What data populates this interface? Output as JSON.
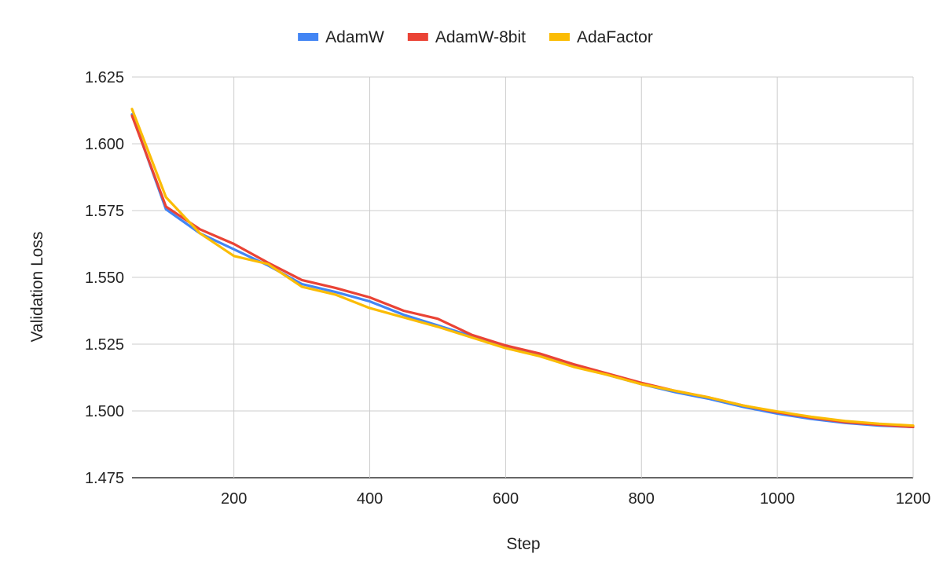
{
  "chart_data": {
    "type": "line",
    "title": "",
    "xlabel": "Step",
    "ylabel": "Validation Loss",
    "xlim": [
      50,
      1200
    ],
    "ylim": [
      1.475,
      1.625
    ],
    "xticks": [
      200,
      400,
      600,
      800,
      1000,
      1200
    ],
    "xtick_labels": [
      "200",
      "400",
      "600",
      "800",
      "1000",
      "1200"
    ],
    "yticks": [
      1.475,
      1.5,
      1.525,
      1.55,
      1.575,
      1.6,
      1.625
    ],
    "ytick_labels": [
      "1.475",
      "1.500",
      "1.525",
      "1.550",
      "1.575",
      "1.600",
      "1.625"
    ],
    "grid": true,
    "legend_position": "top",
    "x": [
      50,
      100,
      150,
      200,
      250,
      300,
      350,
      400,
      450,
      500,
      550,
      600,
      650,
      700,
      750,
      800,
      850,
      900,
      950,
      1000,
      1050,
      1100,
      1150,
      1200
    ],
    "series": [
      {
        "name": "AdamW",
        "color": "#4285F4",
        "values": [
          1.611,
          1.5755,
          1.5665,
          1.5605,
          1.5545,
          1.5475,
          1.5445,
          1.541,
          1.536,
          1.532,
          1.528,
          1.524,
          1.521,
          1.517,
          1.5135,
          1.51,
          1.507,
          1.5045,
          1.5015,
          1.499,
          1.497,
          1.4955,
          1.4945,
          1.494
        ]
      },
      {
        "name": "AdamW-8bit",
        "color": "#EA4335",
        "values": [
          1.6105,
          1.5765,
          1.568,
          1.5625,
          1.5555,
          1.549,
          1.546,
          1.5425,
          1.5375,
          1.5345,
          1.5285,
          1.5245,
          1.5215,
          1.5175,
          1.514,
          1.5105,
          1.5075,
          1.505,
          1.502,
          1.4995,
          1.4975,
          1.4958,
          1.4948,
          1.494
        ]
      },
      {
        "name": "AdaFactor",
        "color": "#FBBC04",
        "values": [
          1.613,
          1.58,
          1.5665,
          1.558,
          1.555,
          1.5465,
          1.5435,
          1.5385,
          1.535,
          1.5315,
          1.5275,
          1.5235,
          1.5205,
          1.5165,
          1.5135,
          1.51,
          1.5075,
          1.505,
          1.502,
          1.4998,
          1.4978,
          1.4962,
          1.4952,
          1.4945
        ]
      }
    ]
  }
}
